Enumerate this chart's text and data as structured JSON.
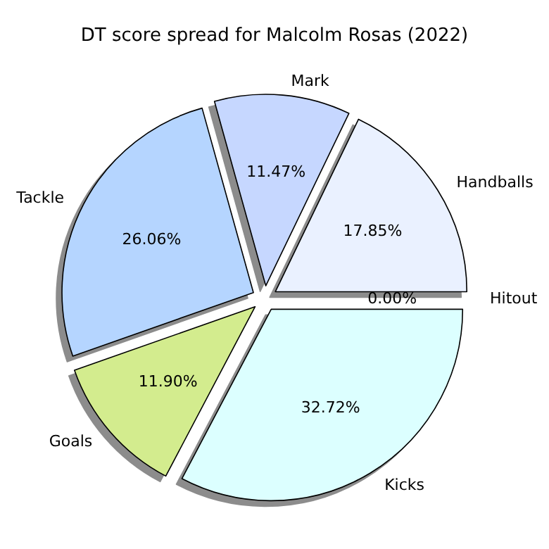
{
  "chart_data": {
    "type": "pie",
    "title": "DT score spread for Malcolm Rosas (2022)",
    "categories": [
      "Handballs",
      "Mark",
      "Tackle",
      "Goals",
      "Kicks",
      "Hitout"
    ],
    "values": [
      17.85,
      11.47,
      26.06,
      11.9,
      32.72,
      0.0
    ],
    "value_labels": [
      "17.85%",
      "11.47%",
      "26.06%",
      "11.90%",
      "32.72%",
      "0.00%"
    ],
    "colors": [
      "#eaf1ff",
      "#c6d7ff",
      "#b5d5ff",
      "#d3ec8e",
      "#dcffff",
      "#f3e4d5"
    ],
    "legend": false
  }
}
